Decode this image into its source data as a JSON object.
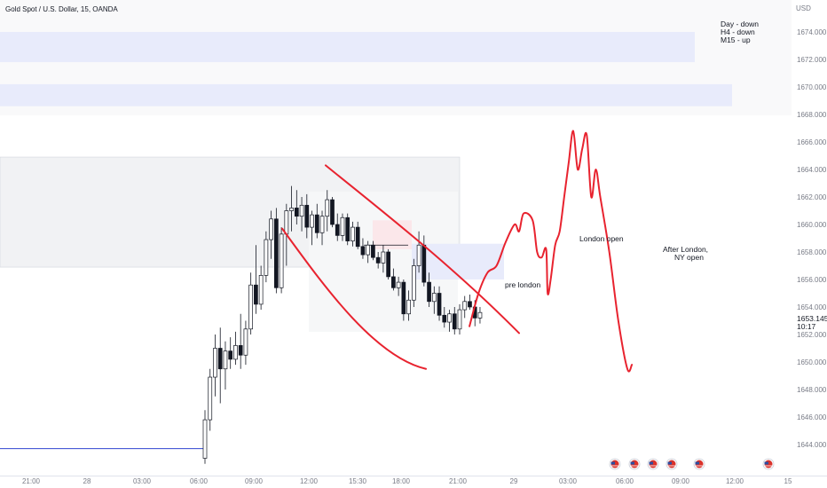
{
  "header": {
    "symbol_title": "Gold Spot / U.S. Dollar, 15, OANDA"
  },
  "price_axis": {
    "currency": "USD",
    "ticks": [
      "1674.000",
      "1672.000",
      "1670.000",
      "1668.000",
      "1666.000",
      "1664.000",
      "1662.000",
      "1660.000",
      "1658.000",
      "1656.000",
      "1654.000",
      "1652.000",
      "1650.000",
      "1648.000",
      "1646.000",
      "1644.000"
    ],
    "current_price": "1653.145",
    "countdown": "10:17"
  },
  "time_axis": {
    "labels": [
      "21:00",
      "28",
      "03:00",
      "06:00",
      "09:00",
      "12:00",
      "15:30",
      "18:00",
      "21:00",
      "29",
      "03:00",
      "06:00",
      "09:00",
      "12:00",
      "15"
    ]
  },
  "annotations": {
    "bias_lines": [
      "Day - down",
      "H4 - down",
      "M15 - up"
    ],
    "pre_london": "pre london",
    "london_open": "London open",
    "after_london": [
      "After London,",
      "NY open"
    ]
  },
  "colors": {
    "bull_body": "#ffffff",
    "bear_body": "#131722",
    "wick": "#131722",
    "drawing": "#e8232f",
    "zone_blue": "#e8ebfb",
    "zone_grey": "#f1f2f4",
    "zone_pink": "#fbe7ea",
    "hline": "#3145d1"
  },
  "chart_data": {
    "type": "candlestick",
    "title": "Gold Spot / U.S. Dollar, 15, OANDA",
    "ylabel": "USD",
    "ylim": [
      1642.5,
      1675.8
    ],
    "x_labels": [
      "21:00",
      "28",
      "03:00",
      "06:00",
      "09:00",
      "12:00",
      "15:30",
      "18:00",
      "21:00",
      "29",
      "03:00",
      "06:00",
      "09:00",
      "12:00",
      "15"
    ],
    "candles": [
      {
        "o": 1643.0,
        "h": 1646.5,
        "l": 1642.6,
        "c": 1645.8
      },
      {
        "o": 1645.8,
        "h": 1649.5,
        "l": 1645.0,
        "c": 1648.9
      },
      {
        "o": 1648.9,
        "h": 1652.0,
        "l": 1647.5,
        "c": 1651.0
      },
      {
        "o": 1651.0,
        "h": 1652.5,
        "l": 1647.0,
        "c": 1649.5
      },
      {
        "o": 1649.5,
        "h": 1651.5,
        "l": 1648.0,
        "c": 1650.8
      },
      {
        "o": 1650.8,
        "h": 1651.8,
        "l": 1649.5,
        "c": 1650.2
      },
      {
        "o": 1650.2,
        "h": 1652.2,
        "l": 1649.8,
        "c": 1651.2
      },
      {
        "o": 1651.2,
        "h": 1653.5,
        "l": 1649.5,
        "c": 1650.5
      },
      {
        "o": 1650.5,
        "h": 1653.0,
        "l": 1649.8,
        "c": 1652.4
      },
      {
        "o": 1652.4,
        "h": 1656.5,
        "l": 1652.0,
        "c": 1655.6
      },
      {
        "o": 1655.6,
        "h": 1658.5,
        "l": 1653.5,
        "c": 1654.2
      },
      {
        "o": 1654.2,
        "h": 1657.0,
        "l": 1653.8,
        "c": 1656.3
      },
      {
        "o": 1656.3,
        "h": 1659.5,
        "l": 1655.8,
        "c": 1658.9
      },
      {
        "o": 1658.9,
        "h": 1661.0,
        "l": 1657.5,
        "c": 1660.4
      },
      {
        "o": 1660.4,
        "h": 1661.2,
        "l": 1655.0,
        "c": 1655.4
      },
      {
        "o": 1655.4,
        "h": 1659.8,
        "l": 1655.0,
        "c": 1659.3
      },
      {
        "o": 1659.3,
        "h": 1661.5,
        "l": 1657.0,
        "c": 1661.0
      },
      {
        "o": 1661.0,
        "h": 1662.8,
        "l": 1659.5,
        "c": 1661.2
      },
      {
        "o": 1661.2,
        "h": 1662.5,
        "l": 1660.0,
        "c": 1660.6
      },
      {
        "o": 1660.6,
        "h": 1662.0,
        "l": 1659.5,
        "c": 1661.4
      },
      {
        "o": 1661.4,
        "h": 1662.2,
        "l": 1659.0,
        "c": 1659.8
      },
      {
        "o": 1659.8,
        "h": 1661.0,
        "l": 1658.5,
        "c": 1660.7
      },
      {
        "o": 1660.7,
        "h": 1661.5,
        "l": 1659.0,
        "c": 1659.4
      },
      {
        "o": 1659.4,
        "h": 1661.0,
        "l": 1658.5,
        "c": 1660.6
      },
      {
        "o": 1660.6,
        "h": 1662.5,
        "l": 1659.5,
        "c": 1661.8
      },
      {
        "o": 1661.8,
        "h": 1662.0,
        "l": 1659.8,
        "c": 1660.0
      },
      {
        "o": 1660.0,
        "h": 1660.8,
        "l": 1658.8,
        "c": 1659.2
      },
      {
        "o": 1659.2,
        "h": 1660.8,
        "l": 1658.8,
        "c": 1660.5
      },
      {
        "o": 1660.5,
        "h": 1660.8,
        "l": 1658.5,
        "c": 1658.8
      },
      {
        "o": 1658.8,
        "h": 1660.2,
        "l": 1658.4,
        "c": 1659.8
      },
      {
        "o": 1659.8,
        "h": 1660.2,
        "l": 1658.2,
        "c": 1658.4
      },
      {
        "o": 1658.4,
        "h": 1659.0,
        "l": 1657.5,
        "c": 1657.8
      },
      {
        "o": 1657.8,
        "h": 1658.8,
        "l": 1657.2,
        "c": 1658.5
      },
      {
        "o": 1658.5,
        "h": 1658.8,
        "l": 1657.4,
        "c": 1657.6
      },
      {
        "o": 1657.6,
        "h": 1658.0,
        "l": 1656.8,
        "c": 1657.2
      },
      {
        "o": 1657.2,
        "h": 1658.5,
        "l": 1656.5,
        "c": 1658.0
      },
      {
        "o": 1658.0,
        "h": 1658.2,
        "l": 1656.0,
        "c": 1656.2
      },
      {
        "o": 1656.2,
        "h": 1656.8,
        "l": 1655.2,
        "c": 1655.4
      },
      {
        "o": 1655.4,
        "h": 1656.2,
        "l": 1654.8,
        "c": 1655.8
      },
      {
        "o": 1655.8,
        "h": 1656.0,
        "l": 1653.0,
        "c": 1653.5
      },
      {
        "o": 1653.5,
        "h": 1655.2,
        "l": 1653.0,
        "c": 1654.5
      },
      {
        "o": 1654.5,
        "h": 1657.5,
        "l": 1654.0,
        "c": 1657.0
      },
      {
        "o": 1657.0,
        "h": 1659.5,
        "l": 1656.5,
        "c": 1658.5
      },
      {
        "o": 1658.5,
        "h": 1659.2,
        "l": 1655.5,
        "c": 1655.8
      },
      {
        "o": 1655.8,
        "h": 1656.5,
        "l": 1654.0,
        "c": 1654.4
      },
      {
        "o": 1654.4,
        "h": 1655.5,
        "l": 1653.5,
        "c": 1655.0
      },
      {
        "o": 1655.0,
        "h": 1655.5,
        "l": 1653.0,
        "c": 1653.4
      },
      {
        "o": 1653.4,
        "h": 1654.0,
        "l": 1652.5,
        "c": 1652.9
      },
      {
        "o": 1652.9,
        "h": 1653.8,
        "l": 1652.2,
        "c": 1653.5
      },
      {
        "o": 1653.5,
        "h": 1654.0,
        "l": 1652.0,
        "c": 1652.4
      },
      {
        "o": 1652.4,
        "h": 1654.2,
        "l": 1652.0,
        "c": 1653.8
      },
      {
        "o": 1653.8,
        "h": 1654.8,
        "l": 1653.2,
        "c": 1654.4
      },
      {
        "o": 1654.4,
        "h": 1654.9,
        "l": 1653.8,
        "c": 1654.0
      },
      {
        "o": 1654.0,
        "h": 1654.5,
        "l": 1652.6,
        "c": 1653.2
      },
      {
        "o": 1653.2,
        "h": 1654.0,
        "l": 1652.8,
        "c": 1653.6
      }
    ],
    "projection": [
      [
        "00:15",
        1652.6
      ],
      [
        "00:45",
        1655.0
      ],
      [
        "01:15",
        1656.5
      ],
      [
        "01:45",
        1657.0
      ],
      [
        "02:15",
        1658.7
      ],
      [
        "02:45",
        1660.0
      ],
      [
        "03:00",
        1659.5
      ],
      [
        "03:15",
        1660.8
      ],
      [
        "03:45",
        1660.3
      ],
      [
        "04:00",
        1658.0
      ],
      [
        "04:15",
        1657.6
      ],
      [
        "04:30",
        1658.2
      ],
      [
        "04:35",
        1655.0
      ],
      [
        "04:45",
        1656.0
      ],
      [
        "05:00",
        1658.5
      ],
      [
        "05:15",
        1659.5
      ],
      [
        "05:30",
        1662.0
      ],
      [
        "05:45",
        1664.5
      ],
      [
        "06:00",
        1666.8
      ],
      [
        "06:15",
        1664.0
      ],
      [
        "06:30",
        1665.5
      ],
      [
        "06:45",
        1666.5
      ],
      [
        "07:00",
        1662.0
      ],
      [
        "07:15",
        1664.0
      ],
      [
        "07:30",
        1662.0
      ],
      [
        "08:00",
        1658.0
      ],
      [
        "08:30",
        1653.0
      ],
      [
        "09:00",
        1649.5
      ],
      [
        "09:15",
        1649.8
      ]
    ]
  }
}
